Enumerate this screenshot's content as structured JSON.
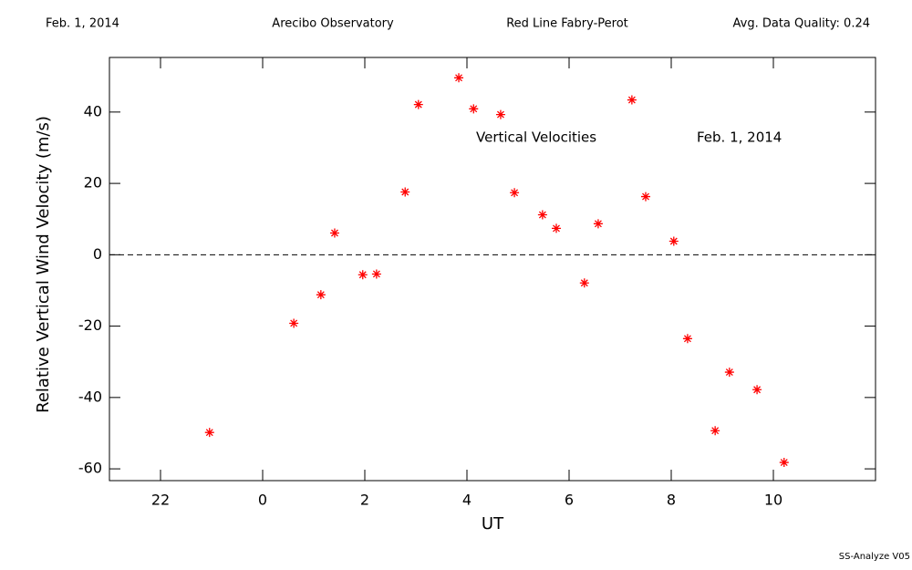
{
  "chart_data": {
    "type": "scatter",
    "header": [
      "Feb. 1, 2014",
      "Arecibo Observatory",
      "Red Line Fabry-Perot",
      "Avg. Data Quality: 0.24"
    ],
    "annotations": [
      "Vertical Velocities",
      "Feb. 1, 2014"
    ],
    "footer": "SS-Analyze V05",
    "x_label": "UT",
    "y_label": "Relative Vertical Wind Velocity (m/s)",
    "color": "#ff0000",
    "x": [
      22.96,
      24.61,
      25.14,
      25.41,
      25.96,
      26.23,
      26.79,
      27.05,
      27.84,
      28.13,
      28.66,
      28.93,
      29.48,
      29.75,
      30.3,
      30.57,
      31.23,
      31.5,
      32.05,
      32.32,
      32.86,
      33.14,
      33.68,
      34.21
    ],
    "values": [
      -49.8,
      -19.2,
      -11.2,
      6.1,
      -5.6,
      -5.4,
      17.6,
      42.1,
      49.6,
      40.9,
      39.3,
      17.4,
      11.2,
      7.4,
      -7.9,
      8.7,
      43.4,
      16.3,
      3.8,
      -23.5,
      -49.3,
      -32.9,
      -37.8,
      -58.2
    ],
    "xlim": [
      21,
      36
    ],
    "ylim": [
      -63.3,
      55.3
    ],
    "xticks": [
      22,
      {
        "value": 24,
        "label": "0"
      },
      {
        "value": 26,
        "label": "2"
      },
      {
        "value": 28,
        "label": "4"
      },
      {
        "value": 30,
        "label": "6"
      },
      {
        "value": 32,
        "label": "8"
      },
      {
        "value": 34,
        "label": "10"
      }
    ],
    "yticks": [
      -60,
      -40,
      -20,
      0,
      20,
      40
    ],
    "hline": 0
  }
}
